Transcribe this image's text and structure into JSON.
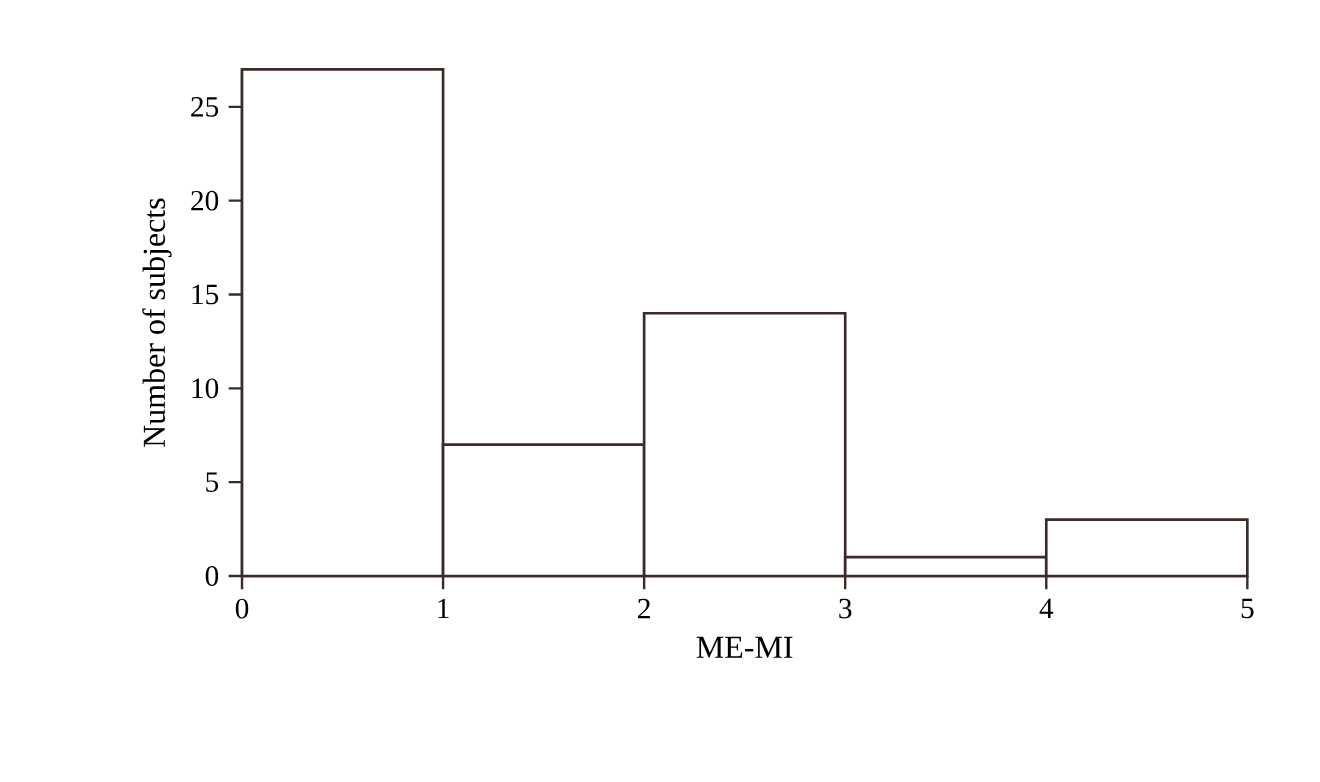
{
  "chart_data": {
    "type": "histogram",
    "xlabel": "ME-MI",
    "ylabel": "Number of subjects",
    "bins": [
      0,
      1,
      2,
      3,
      4,
      5
    ],
    "values": [
      27,
      7,
      14,
      1,
      3
    ],
    "color": "#3b2a27",
    "xlim": [
      0,
      5
    ],
    "xticks": [
      0,
      1,
      2,
      3,
      4,
      5
    ],
    "ylim": [
      0,
      27
    ],
    "yticks": [
      0,
      5,
      10,
      15,
      20,
      25
    ],
    "grid": false
  }
}
